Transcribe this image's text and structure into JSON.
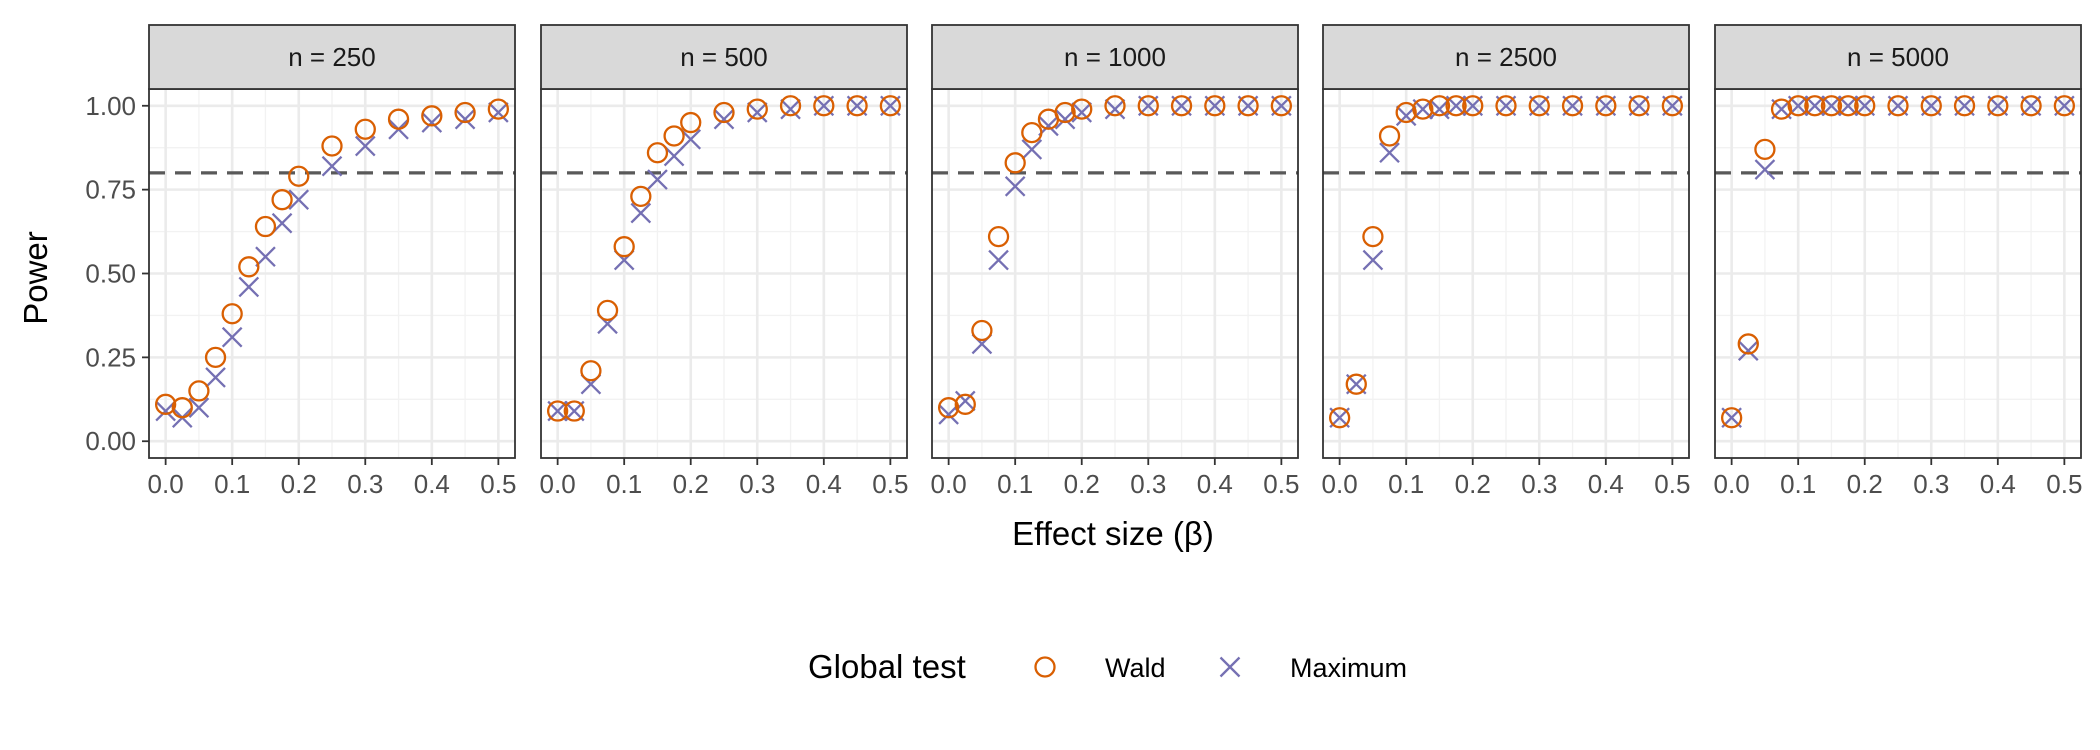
{
  "chart_data": {
    "type": "scatter",
    "xlabel": "Effect size (β)",
    "ylabel": "Power",
    "xlim": [
      -0.025,
      0.525
    ],
    "ylim": [
      -0.05,
      1.05
    ],
    "x_ticks": [
      0.0,
      0.1,
      0.2,
      0.3,
      0.4,
      0.5
    ],
    "x_tick_labels": [
      "0.0",
      "0.1",
      "0.2",
      "0.3",
      "0.4",
      "0.5"
    ],
    "y_ticks": [
      0.0,
      0.25,
      0.5,
      0.75,
      1.0
    ],
    "y_tick_labels": [
      "0.00",
      "0.25",
      "0.50",
      "0.75",
      "1.00"
    ],
    "reference_line": {
      "y": 0.8,
      "style": "dashed",
      "color": "#595959"
    },
    "grid": true,
    "legend": {
      "title": "Global test",
      "position": "bottom",
      "entries": [
        {
          "name": "Wald",
          "shape": "circle",
          "color": "#D95F02"
        },
        {
          "name": "Maximum",
          "shape": "cross",
          "color": "#7570B3"
        }
      ]
    },
    "x": [
      0.0,
      0.025,
      0.05,
      0.075,
      0.1,
      0.125,
      0.15,
      0.175,
      0.2,
      0.25,
      0.3,
      0.35,
      0.4,
      0.45,
      0.5
    ],
    "panels": [
      {
        "label": "n = 250",
        "series": [
          {
            "name": "Wald",
            "values": [
              0.11,
              0.1,
              0.15,
              0.25,
              0.38,
              0.52,
              0.64,
              0.72,
              0.79,
              0.88,
              0.93,
              0.96,
              0.97,
              0.98,
              0.99
            ]
          },
          {
            "name": "Maximum",
            "values": [
              0.09,
              0.07,
              0.1,
              0.19,
              0.31,
              0.46,
              0.55,
              0.65,
              0.72,
              0.82,
              0.88,
              0.93,
              0.95,
              0.96,
              0.98
            ]
          }
        ]
      },
      {
        "label": "n = 500",
        "series": [
          {
            "name": "Wald",
            "values": [
              0.09,
              0.09,
              0.21,
              0.39,
              0.58,
              0.73,
              0.86,
              0.91,
              0.95,
              0.98,
              0.99,
              1.0,
              1.0,
              1.0,
              1.0
            ]
          },
          {
            "name": "Maximum",
            "values": [
              0.09,
              0.09,
              0.17,
              0.35,
              0.54,
              0.68,
              0.78,
              0.85,
              0.9,
              0.96,
              0.98,
              0.99,
              1.0,
              1.0,
              1.0
            ]
          }
        ]
      },
      {
        "label": "n = 1000",
        "series": [
          {
            "name": "Wald",
            "values": [
              0.1,
              0.11,
              0.33,
              0.61,
              0.83,
              0.92,
              0.96,
              0.98,
              0.99,
              1.0,
              1.0,
              1.0,
              1.0,
              1.0,
              1.0
            ]
          },
          {
            "name": "Maximum",
            "values": [
              0.08,
              0.12,
              0.29,
              0.54,
              0.76,
              0.87,
              0.94,
              0.96,
              0.98,
              0.99,
              1.0,
              1.0,
              1.0,
              1.0,
              1.0
            ]
          }
        ]
      },
      {
        "label": "n = 2500",
        "series": [
          {
            "name": "Wald",
            "values": [
              0.07,
              0.17,
              0.61,
              0.91,
              0.98,
              0.99,
              1.0,
              1.0,
              1.0,
              1.0,
              1.0,
              1.0,
              1.0,
              1.0,
              1.0
            ]
          },
          {
            "name": "Maximum",
            "values": [
              0.07,
              0.17,
              0.54,
              0.86,
              0.97,
              0.99,
              0.99,
              1.0,
              1.0,
              1.0,
              1.0,
              1.0,
              1.0,
              1.0,
              1.0
            ]
          }
        ]
      },
      {
        "label": "n = 5000",
        "series": [
          {
            "name": "Wald",
            "values": [
              0.07,
              0.29,
              0.87,
              0.99,
              1.0,
              1.0,
              1.0,
              1.0,
              1.0,
              1.0,
              1.0,
              1.0,
              1.0,
              1.0,
              1.0
            ]
          },
          {
            "name": "Maximum",
            "values": [
              0.07,
              0.27,
              0.81,
              0.99,
              1.0,
              1.0,
              1.0,
              1.0,
              1.0,
              1.0,
              1.0,
              1.0,
              1.0,
              1.0,
              1.0
            ]
          }
        ]
      }
    ]
  }
}
